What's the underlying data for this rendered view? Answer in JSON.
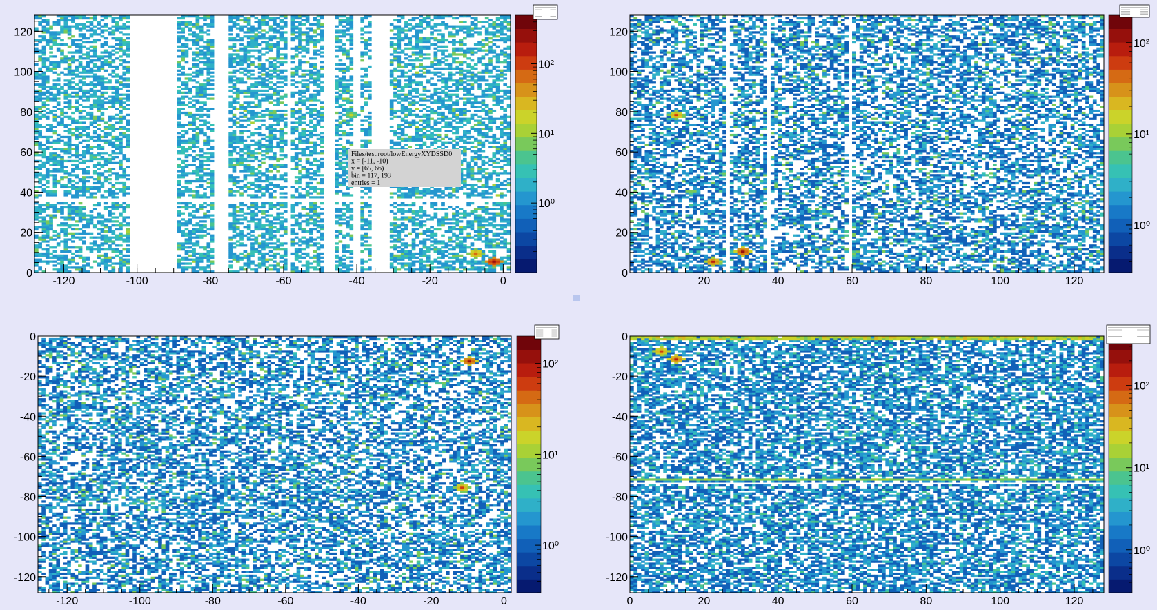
{
  "page": {
    "background": "#e6e6f9"
  },
  "colormap": [
    "#061a70",
    "#0a2e8a",
    "#0c47a3",
    "#1160b8",
    "#1879c7",
    "#2496cf",
    "#2fb0c8",
    "#36c1b4",
    "#4bc48f",
    "#79c95b",
    "#a9d136",
    "#cbd32a",
    "#d9b721",
    "#d7921a",
    "#d56a14",
    "#cd3c10",
    "#b81d0e",
    "#96100c",
    "#70050a"
  ],
  "tooltip": {
    "lines": [
      "Files/test.root/lowEnergyXYDSSD0",
      "x = [-11, -10)",
      "y = [65, 66)",
      "bin = 117, 193",
      "entries = 1"
    ],
    "background": "#d3d3d3"
  },
  "chart_data": [
    {
      "type": "heatmap",
      "scale": "log-z",
      "x_range": [
        -128,
        2
      ],
      "y_range": [
        0,
        128
      ],
      "x_ticks": [
        "-120",
        "-100",
        "-80",
        "-60",
        "-40",
        "-20",
        "0"
      ],
      "x_tick_values": [
        -120,
        -100,
        -80,
        -60,
        -40,
        -20,
        0
      ],
      "y_ticks": [
        "0",
        "20",
        "40",
        "60",
        "80",
        "100",
        "120"
      ],
      "y_tick_values": [
        0,
        20,
        40,
        60,
        80,
        100,
        120
      ],
      "z_ticks": [
        "10⁰",
        "10¹",
        "10²"
      ],
      "z_tick_values": [
        1,
        10,
        100
      ],
      "z_range": [
        0.1,
        500
      ],
      "empty_x_bands": [
        [
          -102,
          -89
        ],
        [
          -79,
          -75
        ],
        [
          -59,
          -58
        ],
        [
          -49,
          -46
        ],
        [
          -41,
          -39
        ],
        [
          -36,
          -31
        ]
      ],
      "empty_y_bands": [
        [
          35,
          37
        ]
      ],
      "hot_spots": [
        {
          "x": -3,
          "y": 5,
          "value": 300
        },
        {
          "x": -8,
          "y": 9,
          "value": 60
        },
        {
          "x": -42,
          "y": 78,
          "value": 15
        }
      ],
      "approx_density": 0.55
    },
    {
      "type": "heatmap",
      "scale": "log-z",
      "x_range": [
        0,
        128
      ],
      "y_range": [
        0,
        128
      ],
      "x_ticks": [
        "20",
        "40",
        "60",
        "80",
        "100",
        "120"
      ],
      "x_tick_values": [
        20,
        40,
        60,
        80,
        100,
        120
      ],
      "y_ticks": [
        "0",
        "20",
        "40",
        "60",
        "80",
        "100",
        "120"
      ],
      "y_tick_values": [
        0,
        20,
        40,
        60,
        80,
        100,
        120
      ],
      "z_ticks": [
        "10⁰",
        "10¹",
        "10²"
      ],
      "z_tick_values": [
        1,
        10,
        100
      ],
      "z_range": [
        0.3,
        200
      ],
      "empty_x_bands": [
        [
          26,
          27
        ],
        [
          37,
          38
        ],
        [
          59,
          60
        ]
      ],
      "empty_y_bands": [],
      "hot_spots": [
        {
          "x": 30,
          "y": 10,
          "value": 120
        },
        {
          "x": 22,
          "y": 5,
          "value": 80
        },
        {
          "x": 12,
          "y": 78,
          "value": 60
        }
      ],
      "approx_density": 0.55
    },
    {
      "type": "heatmap",
      "scale": "log-z",
      "x_range": [
        -128,
        2
      ],
      "y_range": [
        -128,
        0
      ],
      "x_ticks": [
        "-120",
        "-100",
        "-80",
        "-60",
        "-40",
        "-20",
        "0"
      ],
      "x_tick_values": [
        -120,
        -100,
        -80,
        -60,
        -40,
        -20,
        0
      ],
      "y_ticks": [
        "0",
        "-20",
        "-40",
        "-60",
        "-80",
        "-100",
        "-120"
      ],
      "y_tick_values": [
        0,
        -20,
        -40,
        -60,
        -80,
        -100,
        -120
      ],
      "z_ticks": [
        "10⁰",
        "10¹",
        "10²"
      ],
      "z_tick_values": [
        1,
        10,
        100
      ],
      "z_range": [
        0.3,
        200
      ],
      "empty_x_bands": [],
      "empty_y_bands": [],
      "hot_spots": [
        {
          "x": -10,
          "y": -13,
          "value": 120
        },
        {
          "x": -12,
          "y": -76,
          "value": 60
        }
      ],
      "approx_density": 0.55
    },
    {
      "type": "heatmap",
      "scale": "log-z",
      "x_range": [
        0,
        128
      ],
      "y_range": [
        -128,
        0
      ],
      "x_ticks": [
        "0",
        "20",
        "40",
        "60",
        "80",
        "100",
        "120"
      ],
      "x_tick_values": [
        0,
        20,
        40,
        60,
        80,
        100,
        120
      ],
      "y_ticks": [
        "0",
        "-20",
        "-40",
        "-60",
        "-80",
        "-100",
        "-120"
      ],
      "y_tick_values": [
        0,
        -20,
        -40,
        -60,
        -80,
        -100,
        -120
      ],
      "z_ticks": [
        "10⁰",
        "10¹",
        "10²"
      ],
      "z_tick_values": [
        1,
        10,
        100
      ],
      "z_range": [
        0.3,
        400
      ],
      "empty_x_bands": [],
      "empty_y_bands": [
        [
          -74,
          -73
        ]
      ],
      "bright_row": {
        "y": -72,
        "value": 12
      },
      "bright_top": {
        "y_from": -2,
        "value": 20
      },
      "hot_spots": [
        {
          "x": 12,
          "y": -12,
          "value": 150
        },
        {
          "x": 8,
          "y": -8,
          "value": 100
        }
      ],
      "approx_density": 0.65
    }
  ]
}
